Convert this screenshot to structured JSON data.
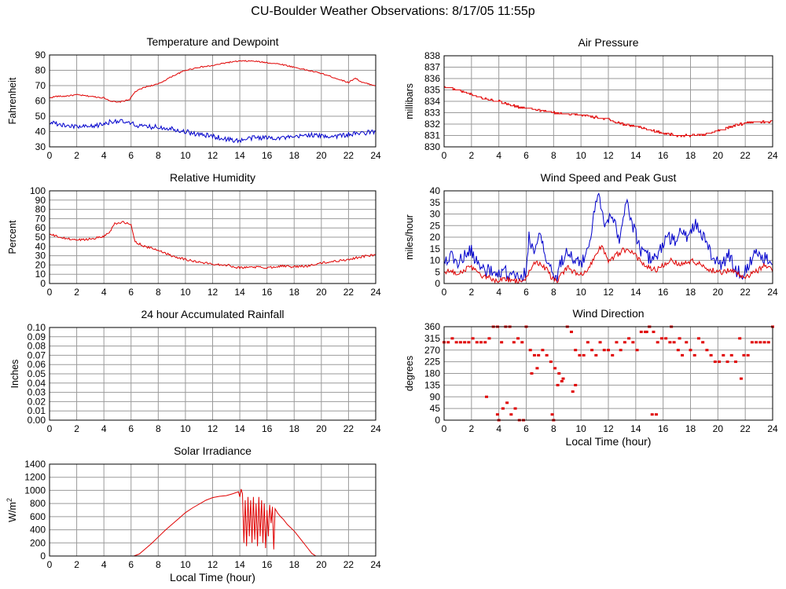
{
  "page": {
    "title": "CU-Boulder Weather Observations: 8/17/05 11:55p"
  },
  "colors": {
    "red": "#e00000",
    "blue": "#0000cc",
    "grid": "#9a9a9a",
    "frame": "#000000"
  },
  "chart_data": [
    {
      "id": "temp",
      "type": "line",
      "title": "Temperature and Dewpoint",
      "xlabel": "",
      "ylabel": "Fahrenheit",
      "xlim": [
        0,
        24
      ],
      "ylim": [
        30,
        90
      ],
      "xticks": [
        0,
        2,
        4,
        6,
        8,
        10,
        12,
        14,
        16,
        18,
        20,
        22,
        24
      ],
      "yticks": [
        30,
        40,
        50,
        60,
        70,
        80,
        90
      ],
      "grid": true,
      "series": [
        {
          "color": "red",
          "noise": 0.4,
          "x": [
            0,
            0.5,
            1,
            2,
            3,
            4,
            4.5,
            5,
            5.5,
            5.9,
            6.3,
            7,
            8,
            9,
            10,
            11,
            12,
            13,
            14,
            15,
            16,
            17,
            18,
            19,
            20,
            21,
            22,
            22.5,
            23,
            24
          ],
          "y": [
            62,
            63,
            63,
            64,
            63,
            62,
            60,
            59,
            60,
            61,
            66,
            69,
            71,
            76,
            80,
            82,
            83,
            85,
            86,
            86,
            85,
            84,
            82,
            80,
            78,
            75,
            72,
            75,
            72,
            70
          ]
        },
        {
          "color": "blue",
          "noise": 1.6,
          "x": [
            0,
            1,
            2,
            3,
            4,
            4.7,
            5,
            6,
            7,
            8,
            9,
            10,
            11,
            12,
            13,
            14,
            15,
            16,
            17,
            18,
            19,
            20,
            21,
            22,
            23,
            24
          ],
          "y": [
            46,
            44,
            43,
            43,
            45,
            47,
            47,
            45,
            43,
            43,
            42,
            40,
            38,
            37,
            35,
            34,
            36,
            36,
            36,
            36,
            38,
            37,
            37,
            38,
            39,
            40
          ]
        }
      ]
    },
    {
      "id": "pres",
      "type": "line",
      "title": "Air Pressure",
      "xlabel": "",
      "ylabel": "millibars",
      "xlim": [
        0,
        24
      ],
      "ylim": [
        830,
        838
      ],
      "xticks": [
        0,
        2,
        4,
        6,
        8,
        10,
        12,
        14,
        16,
        18,
        20,
        22,
        24
      ],
      "yticks": [
        830,
        831,
        832,
        833,
        834,
        835,
        836,
        837,
        838
      ],
      "grid": true,
      "series": [
        {
          "color": "red",
          "noise": 0.08,
          "step": true,
          "x": [
            0,
            1,
            2,
            3,
            4,
            5,
            6,
            7,
            8,
            9,
            10,
            11,
            12,
            13,
            14,
            15,
            16,
            17,
            18,
            19,
            20,
            21,
            22,
            23,
            24
          ],
          "y": [
            835.3,
            835.0,
            834.6,
            834.2,
            834.0,
            833.6,
            833.4,
            833.2,
            833.0,
            832.9,
            832.8,
            832.6,
            832.4,
            832.0,
            831.8,
            831.5,
            831.2,
            831.0,
            831.0,
            831.1,
            831.4,
            831.8,
            832.1,
            832.2,
            832.2
          ]
        }
      ]
    },
    {
      "id": "rh",
      "type": "line",
      "title": "Relative Humidity",
      "xlabel": "",
      "ylabel": "Percent",
      "xlim": [
        0,
        24
      ],
      "ylim": [
        0,
        100
      ],
      "xticks": [
        0,
        2,
        4,
        6,
        8,
        10,
        12,
        14,
        16,
        18,
        20,
        22,
        24
      ],
      "yticks": [
        0,
        10,
        20,
        30,
        40,
        50,
        60,
        70,
        80,
        90,
        100
      ],
      "grid": true,
      "series": [
        {
          "color": "red",
          "noise": 1.2,
          "x": [
            0,
            1,
            2,
            3,
            4,
            4.4,
            4.8,
            5.5,
            6,
            6.3,
            7,
            8,
            9,
            10,
            11,
            12,
            13,
            14,
            15,
            16,
            17,
            18,
            19,
            20,
            21,
            22,
            23,
            24
          ],
          "y": [
            53,
            49,
            47,
            48,
            51,
            55,
            65,
            66,
            63,
            45,
            40,
            36,
            30,
            26,
            23,
            21,
            20,
            17,
            18,
            17,
            19,
            18,
            19,
            22,
            24,
            26,
            29,
            31
          ]
        }
      ]
    },
    {
      "id": "wind",
      "type": "line",
      "title": "Wind Speed and Peak Gust",
      "xlabel": "",
      "ylabel": "miles/hour",
      "xlim": [
        0,
        24
      ],
      "ylim": [
        0,
        40
      ],
      "xticks": [
        0,
        2,
        4,
        6,
        8,
        10,
        12,
        14,
        16,
        18,
        20,
        22,
        24
      ],
      "yticks": [
        0,
        5,
        10,
        15,
        20,
        25,
        30,
        35,
        40
      ],
      "grid": true,
      "series": [
        {
          "color": "blue",
          "noise": 3.0,
          "x": [
            0,
            0.5,
            1,
            1.5,
            2,
            2.5,
            3,
            3.5,
            4,
            4.5,
            5,
            5.5,
            6,
            6.2,
            6.5,
            7,
            7.5,
            7.8,
            8.2,
            8.6,
            9,
            9.5,
            10,
            10.5,
            11,
            11.3,
            11.8,
            12.3,
            12.8,
            13.3,
            13.8,
            14.3,
            14.8,
            15.3,
            15.8,
            16.3,
            16.8,
            17.3,
            17.8,
            18.3,
            18.8,
            19.3,
            19.8,
            20.3,
            20.8,
            21.3,
            21.8,
            22.3,
            22.8,
            23.3,
            23.8,
            24
          ],
          "y": [
            10,
            12,
            9,
            12,
            14,
            8,
            6,
            5,
            3,
            5,
            3,
            2,
            5,
            20,
            15,
            20,
            10,
            6,
            2,
            10,
            15,
            10,
            8,
            15,
            32,
            38,
            25,
            30,
            20,
            35,
            25,
            15,
            12,
            10,
            15,
            20,
            18,
            22,
            20,
            26,
            22,
            15,
            10,
            8,
            12,
            6,
            4,
            8,
            15,
            10,
            12,
            8
          ]
        },
        {
          "color": "red",
          "noise": 1.2,
          "x": [
            0,
            0.5,
            1,
            1.5,
            2,
            2.5,
            3,
            3.5,
            4,
            4.5,
            5,
            5.5,
            6,
            6.5,
            7,
            7.5,
            7.8,
            8.2,
            8.6,
            9,
            9.5,
            10,
            10.5,
            11,
            11.5,
            12,
            12.5,
            13,
            13.5,
            14,
            14.5,
            15,
            15.5,
            16,
            16.5,
            17,
            17.5,
            18,
            18.5,
            19,
            19.5,
            20,
            20.5,
            21,
            21.5,
            22,
            22.5,
            23,
            23.5,
            24
          ],
          "y": [
            5,
            6,
            4,
            6,
            7,
            4,
            3,
            2,
            1,
            2,
            1,
            1,
            2,
            8,
            9,
            6,
            3,
            1,
            4,
            7,
            5,
            4,
            6,
            12,
            16,
            10,
            12,
            14,
            15,
            12,
            8,
            7,
            6,
            8,
            10,
            9,
            8,
            10,
            9,
            7,
            6,
            5,
            5,
            6,
            4,
            3,
            4,
            6,
            8,
            5
          ]
        }
      ]
    },
    {
      "id": "rain",
      "type": "line",
      "title": "24 hour Accumulated Rainfall",
      "xlabel": "",
      "ylabel": "Inches",
      "xlim": [
        0,
        24
      ],
      "ylim": [
        0,
        0.1
      ],
      "xticks": [
        0,
        2,
        4,
        6,
        8,
        10,
        12,
        14,
        16,
        18,
        20,
        22,
        24
      ],
      "yticks": [
        "0.00",
        "0.01",
        "0.02",
        "0.03",
        "0.04",
        "0.05",
        "0.06",
        "0.07",
        "0.08",
        "0.09",
        "0.10"
      ],
      "grid": true,
      "series": [
        {
          "color": "red",
          "noise": 0,
          "x": [
            0,
            24
          ],
          "y": [
            0,
            0
          ]
        }
      ]
    },
    {
      "id": "dir",
      "type": "scatter",
      "title": "Wind Direction",
      "xlabel": "Local Time (hour)",
      "ylabel": "degrees",
      "xlim": [
        0,
        24
      ],
      "ylim": [
        0,
        360
      ],
      "xticks": [
        0,
        2,
        4,
        6,
        8,
        10,
        12,
        14,
        16,
        18,
        20,
        22,
        24
      ],
      "yticks": [
        0,
        45,
        90,
        135,
        180,
        225,
        270,
        315,
        360
      ],
      "grid": true,
      "series": [
        {
          "color": "red",
          "x": [
            0,
            0.3,
            0.6,
            0.9,
            1.2,
            1.5,
            1.8,
            2.1,
            2.4,
            2.7,
            3.0,
            3.3,
            3.6,
            3.9,
            4.2,
            4.5,
            4.8,
            5.1,
            5.4,
            5.7,
            6.0,
            6.3,
            6.6,
            6.9,
            7.2,
            7.5,
            7.8,
            8.1,
            8.4,
            8.7,
            9.0,
            9.3,
            9.6,
            9.9,
            10.2,
            10.5,
            10.8,
            11.1,
            11.4,
            11.7,
            12.0,
            12.3,
            12.6,
            12.9,
            13.2,
            13.5,
            13.8,
            14.1,
            14.4,
            14.7,
            15.0,
            15.3,
            15.6,
            15.9,
            16.2,
            16.5,
            16.8,
            17.1,
            17.4,
            17.7,
            18.0,
            18.3,
            18.6,
            18.9,
            19.2,
            19.5,
            19.8,
            20.1,
            20.4,
            20.7,
            21.0,
            21.3,
            21.6,
            21.9,
            22.2,
            22.5,
            22.8,
            23.1,
            23.4,
            23.7,
            24.0,
            3.1,
            3.9,
            4.0,
            4.3,
            4.6,
            4.9,
            5.2,
            5.5,
            5.8,
            7.9,
            8.0,
            8.3,
            8.6,
            9.4,
            9.6,
            15.2,
            15.5,
            21.7,
            14.8,
            15.0,
            16.6,
            17.2,
            6.4,
            6.8
          ],
          "y": [
            300,
            300,
            315,
            300,
            300,
            300,
            300,
            315,
            300,
            300,
            300,
            315,
            360,
            360,
            300,
            360,
            360,
            300,
            315,
            300,
            360,
            270,
            250,
            250,
            270,
            250,
            225,
            200,
            180,
            160,
            360,
            340,
            270,
            250,
            250,
            300,
            270,
            250,
            300,
            270,
            270,
            250,
            300,
            270,
            300,
            315,
            300,
            270,
            340,
            340,
            360,
            340,
            300,
            315,
            315,
            300,
            300,
            270,
            250,
            300,
            270,
            250,
            315,
            300,
            270,
            250,
            225,
            225,
            250,
            225,
            250,
            225,
            315,
            250,
            250,
            300,
            300,
            300,
            300,
            300,
            360,
            90,
            22,
            0,
            45,
            67,
            22,
            45,
            0,
            0,
            22,
            0,
            135,
            150,
            110,
            135,
            22,
            22,
            160,
            340,
            360,
            360,
            315,
            180,
            200
          ]
        }
      ]
    },
    {
      "id": "solar",
      "type": "line",
      "title": "Solar Irradiance",
      "xlabel": "Local Time (hour)",
      "ylabel": "W/m",
      "ylabel_sup": "2",
      "xlim": [
        0,
        24
      ],
      "ylim": [
        0,
        1400
      ],
      "xticks": [
        0,
        2,
        4,
        6,
        8,
        10,
        12,
        14,
        16,
        18,
        20,
        22,
        24
      ],
      "yticks": [
        0,
        200,
        400,
        600,
        800,
        1000,
        1200,
        1400
      ],
      "grid": true,
      "series": [
        {
          "color": "red",
          "noise": 0,
          "x": [
            0,
            6.2,
            6.6,
            7,
            7.5,
            8,
            8.5,
            9,
            9.5,
            10,
            10.5,
            11,
            11.5,
            12,
            12.5,
            13,
            13.5,
            13.9,
            14.0,
            14.1,
            14.2,
            14.3,
            14.4,
            14.5,
            14.6,
            14.7,
            14.8,
            14.9,
            15.0,
            15.1,
            15.2,
            15.3,
            15.4,
            15.5,
            15.6,
            15.7,
            15.8,
            15.9,
            16.0,
            16.1,
            16.2,
            16.3,
            16.4,
            16.5,
            16.6,
            16.8,
            17.0,
            17.2,
            17.5,
            18.0,
            18.5,
            19.0,
            19.3,
            19.6,
            24
          ],
          "y": [
            0,
            0,
            30,
            100,
            190,
            290,
            390,
            480,
            570,
            660,
            730,
            790,
            850,
            890,
            910,
            920,
            950,
            980,
            900,
            1020,
            950,
            200,
            850,
            150,
            900,
            300,
            850,
            200,
            900,
            250,
            800,
            150,
            900,
            300,
            850,
            200,
            800,
            120,
            700,
            300,
            780,
            500,
            750,
            100,
            720,
            650,
            600,
            560,
            480,
            380,
            250,
            120,
            40,
            0,
            0
          ]
        }
      ]
    }
  ]
}
